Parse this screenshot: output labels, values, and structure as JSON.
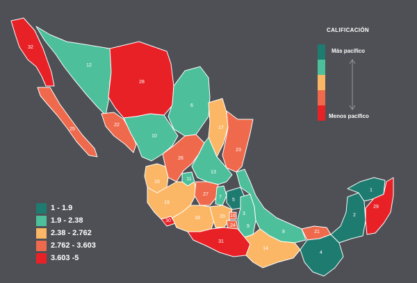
{
  "colors": {
    "background": "#4f5055",
    "c1": "#1e7b70",
    "c2": "#4dbf9b",
    "c3": "#fbb765",
    "c4": "#ef6a4c",
    "c5": "#e82127"
  },
  "legend": [
    {
      "label": "1 - 1.9",
      "color": "#1e7b70"
    },
    {
      "label": "1.9 - 2.38",
      "color": "#4dbf9b"
    },
    {
      "label": "2.38 - 2.762",
      "color": "#fbb765"
    },
    {
      "label": "2.762 - 3.603",
      "color": "#ef6a4c"
    },
    {
      "label": "3.603 -5",
      "color": "#e82127"
    }
  ],
  "scale": {
    "title": "CALIFICACIÓN",
    "top_label": "Más pacífico",
    "bottom_label": "Menos pacífico",
    "colors": [
      "#1e7b70",
      "#4dbf9b",
      "#fbb765",
      "#ef6a4c",
      "#e82127"
    ]
  },
  "states": [
    {
      "id": "baja-california",
      "rank": "32",
      "color": "#e82127"
    },
    {
      "id": "baja-california-sur",
      "rank": "25",
      "color": "#ef6a4c"
    },
    {
      "id": "sonora",
      "rank": "12",
      "color": "#4dbf9b"
    },
    {
      "id": "chihuahua",
      "rank": "28",
      "color": "#e82127"
    },
    {
      "id": "coahuila",
      "rank": "6",
      "color": "#4dbf9b"
    },
    {
      "id": "nuevo-leon",
      "rank": "17",
      "color": "#fbb765"
    },
    {
      "id": "tamaulipas",
      "rank": "23",
      "color": "#ef6a4c"
    },
    {
      "id": "sinaloa",
      "rank": "22",
      "color": "#ef6a4c"
    },
    {
      "id": "durango",
      "rank": "10",
      "color": "#4dbf9b"
    },
    {
      "id": "zacatecas",
      "rank": "26",
      "color": "#ef6a4c"
    },
    {
      "id": "san-luis-potosi",
      "rank": "13",
      "color": "#4dbf9b"
    },
    {
      "id": "nayarit",
      "rank": "15",
      "color": "#fbb765"
    },
    {
      "id": "aguascalientes",
      "rank": "11",
      "color": "#4dbf9b"
    },
    {
      "id": "jalisco",
      "rank": "19",
      "color": "#fbb765"
    },
    {
      "id": "guanajuato",
      "rank": "27",
      "color": "#ef6a4c"
    },
    {
      "id": "queretaro",
      "rank": "7",
      "color": "#4dbf9b"
    },
    {
      "id": "hidalgo",
      "rank": "5",
      "color": "#1e7b70"
    },
    {
      "id": "colima",
      "rank": "30",
      "color": "#e82127"
    },
    {
      "id": "michoacan",
      "rank": "18",
      "color": "#fbb765"
    },
    {
      "id": "estado-de-mexico",
      "rank": "20",
      "color": "#fbb765"
    },
    {
      "id": "cdmx",
      "rank": "16",
      "color": "#ef6a4c"
    },
    {
      "id": "morelos",
      "rank": "24",
      "color": "#ef6a4c"
    },
    {
      "id": "tlaxcala",
      "rank": "3",
      "color": "#1e7b70"
    },
    {
      "id": "puebla",
      "rank": "9",
      "color": "#4dbf9b"
    },
    {
      "id": "veracruz",
      "rank": "8",
      "color": "#4dbf9b"
    },
    {
      "id": "guerrero",
      "rank": "31",
      "color": "#e82127"
    },
    {
      "id": "oaxaca",
      "rank": "14",
      "color": "#fbb765"
    },
    {
      "id": "tabasco",
      "rank": "21",
      "color": "#ef6a4c"
    },
    {
      "id": "chiapas",
      "rank": "4",
      "color": "#1e7b70"
    },
    {
      "id": "campeche",
      "rank": "2",
      "color": "#1e7b70"
    },
    {
      "id": "yucatan",
      "rank": "1",
      "color": "#1e7b70"
    },
    {
      "id": "quintana-roo",
      "rank": "29",
      "color": "#e82127"
    }
  ]
}
